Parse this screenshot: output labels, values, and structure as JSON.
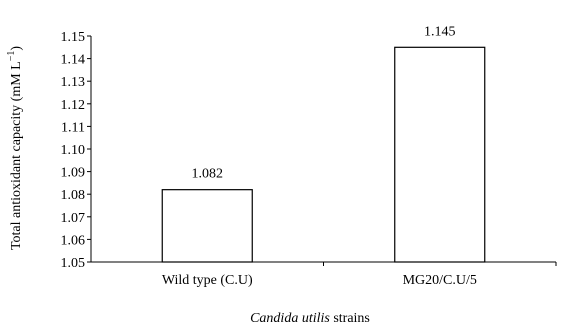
{
  "chart_data": {
    "type": "bar",
    "categories": [
      "Wild type (C.U)",
      "MG20/C.U/5"
    ],
    "values": [
      1.082,
      1.145
    ],
    "data_labels": [
      "1.082",
      "1.145"
    ],
    "ylabel": "Total antioxidant capacity (mM L",
    "ylabel_superscript": "−1",
    "ylabel_close": ")",
    "xlabel_italic": "Candida utilis",
    "xlabel_rest": " strains",
    "ylim": [
      1.05,
      1.15
    ],
    "yticks": [
      "1.05",
      "1.06",
      "1.07",
      "1.08",
      "1.09",
      "1.10",
      "1.11",
      "1.12",
      "1.13",
      "1.14",
      "1.15"
    ],
    "grid": false,
    "bar_fill": "#ffffff",
    "bar_stroke": "#000000"
  }
}
